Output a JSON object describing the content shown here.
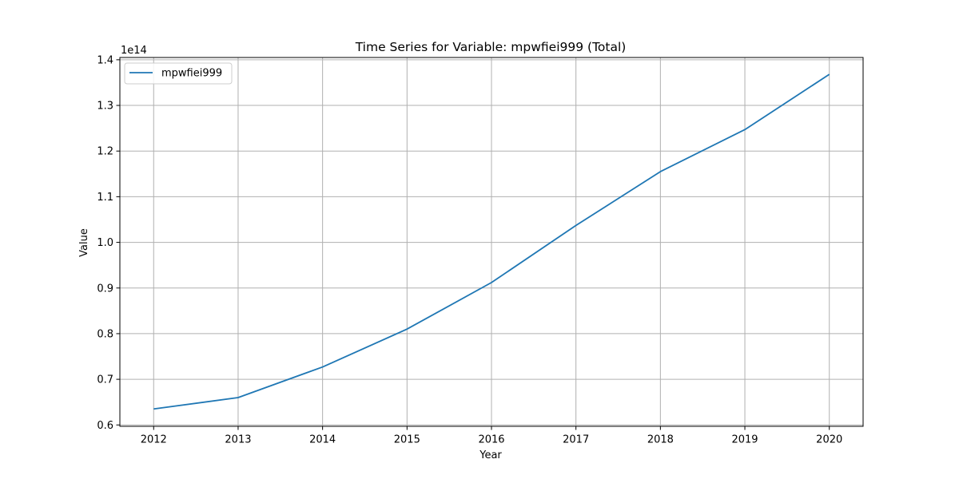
{
  "chart_data": {
    "type": "line",
    "title": "Time Series for Variable: mpwfiei999 (Total)",
    "xlabel": "Year",
    "ylabel": "Value",
    "y_offset_label": "1e14",
    "x": [
      2012,
      2013,
      2014,
      2015,
      2016,
      2017,
      2018,
      2019,
      2020
    ],
    "series": [
      {
        "name": "mpwfiei999",
        "color": "#1f77b4",
        "values": [
          0.635,
          0.66,
          0.727,
          0.81,
          0.912,
          1.037,
          1.155,
          1.247,
          1.368
        ]
      }
    ],
    "xlim": [
      2011.6,
      2020.4
    ],
    "ylim": [
      0.597,
      1.405
    ],
    "xticks": [
      "2012",
      "2013",
      "2014",
      "2015",
      "2016",
      "2017",
      "2018",
      "2019",
      "2020"
    ],
    "yticks": [
      "0.6",
      "0.7",
      "0.8",
      "0.9",
      "1.0",
      "1.1",
      "1.2",
      "1.3",
      "1.4"
    ],
    "grid": true,
    "legend": "upper-left"
  }
}
